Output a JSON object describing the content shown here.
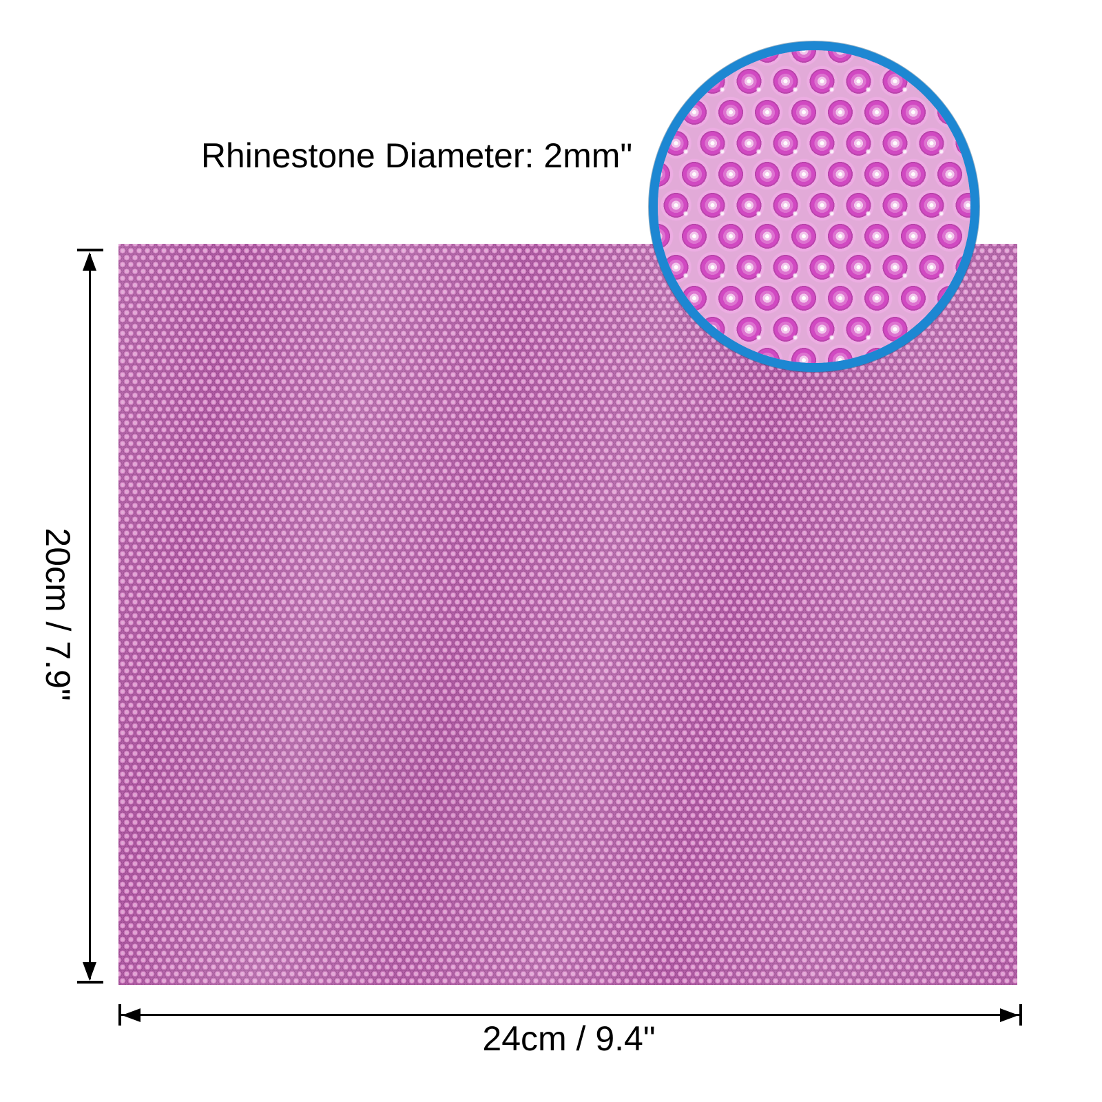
{
  "figure": {
    "title": "Rhinestone Diameter: 2mm\"",
    "height_label": "20cm / 7.9\"",
    "width_label": "24cm / 9.4\""
  },
  "colors": {
    "background": "#ffffff",
    "text": "#000000",
    "dimension_line": "#000000",
    "ring_blue": "#1d87d2",
    "sheet_base": "#b25da6",
    "sheet_stone_light": "#e39fd4",
    "sheet_stone_mid": "#c470b6",
    "sheet_stone_dark": "#9c4a91",
    "detail_base": "#e2aad8",
    "detail_stone_bright": "#d149c2",
    "detail_stone_light": "#f2c6ec"
  }
}
